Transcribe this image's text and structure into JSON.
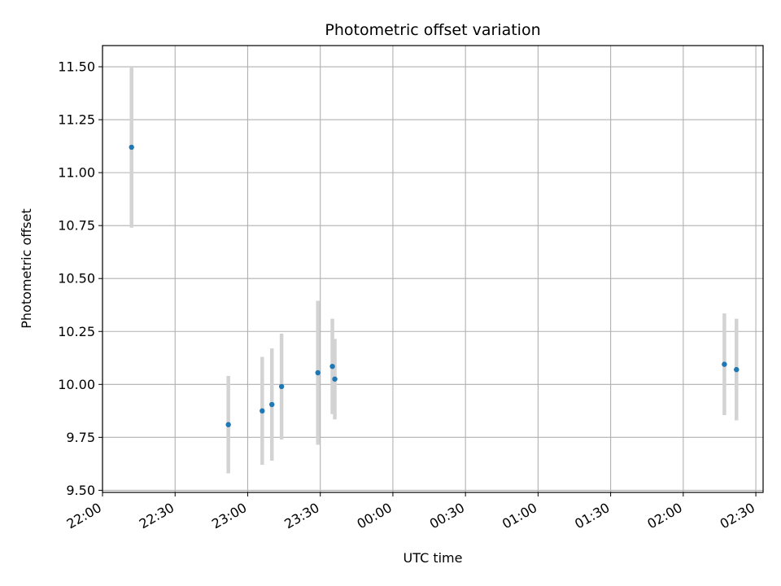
{
  "chart_data": {
    "type": "scatter",
    "title": "Photometric offset variation",
    "xlabel": "UTC time",
    "ylabel": "Photometric offset",
    "x_axis_kind": "time",
    "xlim": [
      "22:00",
      "02:33"
    ],
    "ylim": [
      9.49,
      11.6
    ],
    "xticks": [
      "22:00",
      "22:30",
      "23:00",
      "23:30",
      "00:00",
      "00:30",
      "01:00",
      "01:30",
      "02:00",
      "02:30"
    ],
    "yticks": [
      "9.50",
      "9.75",
      "10.00",
      "10.25",
      "10.50",
      "10.75",
      "11.00",
      "11.25",
      "11.50"
    ],
    "grid": true,
    "point_color": "#1f77b4",
    "errorbar_color": "#d3d3d3",
    "points": [
      {
        "x": "22:12",
        "y": 11.12,
        "yerr": 0.38
      },
      {
        "x": "22:52",
        "y": 9.81,
        "yerr": 0.23
      },
      {
        "x": "23:06",
        "y": 9.875,
        "yerr": 0.255
      },
      {
        "x": "23:10",
        "y": 9.905,
        "yerr": 0.265
      },
      {
        "x": "23:14",
        "y": 9.99,
        "yerr": 0.25
      },
      {
        "x": "23:29",
        "y": 10.055,
        "yerr": 0.34
      },
      {
        "x": "23:35",
        "y": 10.085,
        "yerr": 0.225
      },
      {
        "x": "23:36",
        "y": 10.025,
        "yerr": 0.19
      },
      {
        "x": "02:17",
        "y": 10.095,
        "yerr": 0.24
      },
      {
        "x": "02:22",
        "y": 10.07,
        "yerr": 0.24
      }
    ]
  }
}
